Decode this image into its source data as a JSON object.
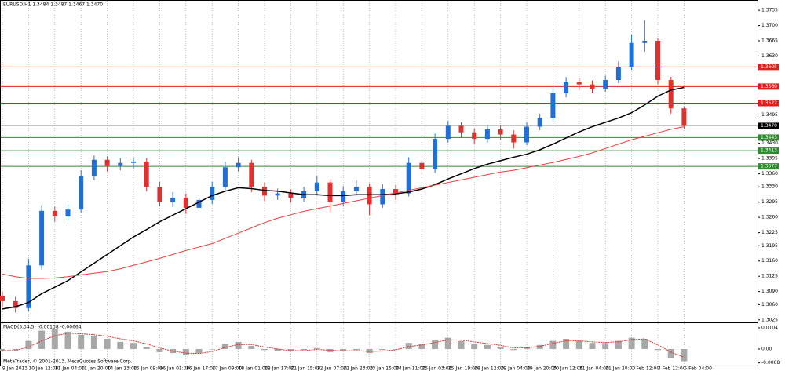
{
  "chart_data": [
    {
      "type": "candlestick",
      "title": "EURUSD,H1  1.3484 1.3487 1.3467 1.3470",
      "categories": [
        "9 Jan 2013",
        null,
        "10 Jan 12:00",
        null,
        "11 Jan 04:00",
        null,
        "11 Jan 20:00",
        null,
        "14 Jan 13:00",
        null,
        "15 Jan 09:00",
        null,
        "16 Jan 01:00",
        null,
        "16 Jan 17:00",
        null,
        "17 Jan 09:00",
        null,
        "18 Jan 01:00",
        null,
        "18 Jan 17:00",
        null,
        "21 Jan 15:00",
        null,
        "22 Jan 07:00",
        null,
        "22 Jan 23:00",
        null,
        "23 Jan 15:00",
        null,
        "24 Jan 11:00",
        null,
        "25 Jan 03:00",
        null,
        "25 Jan 19:00",
        null,
        "28 Jan 12:00",
        null,
        "29 Jan 04:00",
        null,
        "29 Jan 20:00",
        null,
        "30 Jan 12:00",
        null,
        "31 Jan 04:00",
        null,
        "31 Jan 20:00",
        null,
        "1 Feb 12:00",
        null,
        "4 Feb 12:00",
        null,
        "5 Feb 04:00"
      ],
      "open": [
        1.308,
        1.3068,
        1.3052,
        1.315,
        1.3275,
        1.3262,
        1.3278,
        1.3355,
        1.3392,
        1.3378,
        1.3385,
        1.3388,
        1.333,
        1.3295,
        1.3305,
        1.3282,
        1.33,
        1.333,
        1.3375,
        1.3385,
        1.333,
        1.331,
        1.3315,
        1.3305,
        1.332,
        1.334,
        1.3295,
        1.332,
        1.333,
        1.329,
        1.3325,
        1.3315,
        1.3385,
        1.337,
        1.344,
        1.347,
        1.3455,
        1.344,
        1.3462,
        1.345,
        1.3432,
        1.3468,
        1.3488,
        1.3545,
        1.357,
        1.3565,
        1.3555,
        1.3575,
        1.3605,
        1.366,
        1.3665,
        1.3575,
        1.351
      ],
      "high": [
        1.309,
        1.3078,
        1.3165,
        1.3288,
        1.3285,
        1.329,
        1.3368,
        1.3402,
        1.34,
        1.3396,
        1.3398,
        1.3395,
        1.3342,
        1.3318,
        1.3315,
        1.3312,
        1.3342,
        1.3388,
        1.3398,
        1.3392,
        1.334,
        1.3326,
        1.3324,
        1.333,
        1.3355,
        1.3348,
        1.3332,
        1.3345,
        1.3338,
        1.3336,
        1.3334,
        1.3398,
        1.3392,
        1.3452,
        1.3482,
        1.3478,
        1.3464,
        1.3472,
        1.347,
        1.346,
        1.3478,
        1.3498,
        1.3558,
        1.3582,
        1.358,
        1.3574,
        1.3585,
        1.3618,
        1.368,
        1.3712,
        1.3672,
        1.3582,
        1.3515
      ],
      "low": [
        1.3055,
        1.3042,
        1.3045,
        1.314,
        1.325,
        1.3252,
        1.327,
        1.3345,
        1.3365,
        1.3368,
        1.3372,
        1.332,
        1.3285,
        1.3284,
        1.3268,
        1.3272,
        1.329,
        1.3322,
        1.3365,
        1.3318,
        1.3298,
        1.33,
        1.3294,
        1.3296,
        1.331,
        1.3272,
        1.3285,
        1.331,
        1.3265,
        1.3282,
        1.33,
        1.3308,
        1.3358,
        1.3362,
        1.3432,
        1.3442,
        1.3428,
        1.3432,
        1.3438,
        1.3418,
        1.3425,
        1.346,
        1.348,
        1.3535,
        1.3552,
        1.3545,
        1.3548,
        1.3568,
        1.3598,
        1.364,
        1.3565,
        1.3498,
        1.3462
      ],
      "close": [
        1.3068,
        1.3052,
        1.315,
        1.3275,
        1.3262,
        1.3278,
        1.3355,
        1.3392,
        1.3378,
        1.3385,
        1.3388,
        1.333,
        1.3295,
        1.3305,
        1.3282,
        1.33,
        1.333,
        1.3375,
        1.3385,
        1.333,
        1.331,
        1.3315,
        1.3305,
        1.332,
        1.334,
        1.3295,
        1.332,
        1.333,
        1.329,
        1.3325,
        1.3315,
        1.3385,
        1.337,
        1.344,
        1.347,
        1.3455,
        1.344,
        1.3462,
        1.345,
        1.3432,
        1.3468,
        1.3488,
        1.3545,
        1.357,
        1.3565,
        1.3555,
        1.3575,
        1.3605,
        1.366,
        1.3665,
        1.3575,
        1.351,
        1.347
      ],
      "up_color": "#1f6fd6",
      "down_color": "#e03030",
      "moving_averages": [
        {
          "color": "#000000",
          "values": [
            1.305,
            1.3055,
            1.3065,
            1.3085,
            1.31,
            1.3115,
            1.3135,
            1.3155,
            1.3175,
            1.3195,
            1.3215,
            1.3232,
            1.325,
            1.3265,
            1.328,
            1.3295,
            1.331,
            1.332,
            1.3328,
            1.3326,
            1.3322,
            1.332,
            1.3316,
            1.3312,
            1.3312,
            1.331,
            1.331,
            1.3312,
            1.3312,
            1.3312,
            1.3314,
            1.3318,
            1.3325,
            1.3335,
            1.3348,
            1.336,
            1.3372,
            1.3382,
            1.339,
            1.3398,
            1.3405,
            1.3415,
            1.3428,
            1.3442,
            1.3456,
            1.3468,
            1.3478,
            1.3488,
            1.35,
            1.3518,
            1.3538,
            1.3552,
            1.3558
          ]
        },
        {
          "color": "#f03c3c",
          "values": [
            1.313,
            1.3124,
            1.312,
            1.312,
            1.3121,
            1.3124,
            1.3128,
            1.3132,
            1.3136,
            1.3142,
            1.315,
            1.3158,
            1.3166,
            1.3175,
            1.3184,
            1.3192,
            1.32,
            1.3212,
            1.3224,
            1.3236,
            1.3248,
            1.3258,
            1.3266,
            1.3274,
            1.328,
            1.3286,
            1.3292,
            1.3298,
            1.3304,
            1.331,
            1.3316,
            1.3322,
            1.3328,
            1.3334,
            1.334,
            1.3346,
            1.3352,
            1.3358,
            1.3364,
            1.3368,
            1.3374,
            1.338,
            1.3386,
            1.3393,
            1.34,
            1.3408,
            1.3418,
            1.3428,
            1.3438,
            1.3446,
            1.3454,
            1.3462,
            1.3468
          ]
        }
      ],
      "hlines": [
        {
          "value": 1.3605,
          "color": "#e02020"
        },
        {
          "value": 1.356,
          "label": "1.3560",
          "color": "#e02020"
        },
        {
          "value": 1.3522,
          "color": "#e02020"
        },
        {
          "value": 1.3443,
          "color": "#2e8b2e"
        },
        {
          "value": 1.3413,
          "color": "#2e8b2e"
        },
        {
          "value": 1.3377,
          "color": "#2e8b2e"
        }
      ],
      "current": {
        "value": 1.347,
        "label": "1.3470",
        "color": "#000000"
      },
      "ylim": [
        1.3021,
        1.3755
      ],
      "yticks": [
        1.3735,
        {
          "value": 1.37,
          "label": "1.3700"
        },
        1.3665,
        {
          "value": 1.363,
          "label": "1.3630"
        },
        1.3495,
        {
          "value": 1.343,
          "label": "1.3430"
        },
        1.3395,
        {
          "value": 1.336,
          "label": "1.3360"
        },
        {
          "value": 1.333,
          "label": "1.3330"
        },
        1.3295,
        {
          "value": 1.326,
          "label": "1.3260"
        },
        1.3225,
        1.3195,
        {
          "value": 1.316,
          "label": "1.3160"
        },
        1.3125,
        {
          "value": 1.309,
          "label": "1.3090"
        },
        {
          "value": 1.306,
          "label": "1.3060"
        },
        1.3025
      ]
    },
    {
      "type": "macd",
      "title": "MACD(5,34,5) -0.00138 -0.00664",
      "histogram": {
        "color": "#a8a8a8",
        "values": [
          -0.001,
          -0.0005,
          0.004,
          0.009,
          0.01,
          0.0085,
          0.007,
          0.0065,
          0.005,
          0.0035,
          0.003,
          0.001,
          -0.0015,
          -0.002,
          -0.003,
          -0.002,
          0.0,
          0.0025,
          0.0035,
          0.0015,
          -0.0005,
          -0.001,
          -0.0012,
          -0.0005,
          0.0005,
          -0.0015,
          -0.001,
          -0.0005,
          -0.002,
          -0.0005,
          0.0,
          0.003,
          0.0025,
          0.0045,
          0.0055,
          0.004,
          0.0025,
          0.002,
          0.0012,
          -0.0005,
          0.001,
          0.002,
          0.004,
          0.005,
          0.004,
          0.003,
          0.003,
          0.004,
          0.0055,
          0.005,
          -0.0005,
          -0.0045,
          -0.006
        ]
      },
      "signal": {
        "color": "#e03030",
        "values": [
          -0.0008,
          -0.0007,
          0.001,
          0.004,
          0.0065,
          0.0078,
          0.0075,
          0.007,
          0.0062,
          0.005,
          0.004,
          0.0025,
          0.0005,
          -0.001,
          -0.002,
          -0.0022,
          -0.0012,
          0.0008,
          0.0022,
          0.0022,
          0.001,
          0.0,
          -0.0008,
          -0.0008,
          -0.0002,
          -0.0006,
          -0.0009,
          -0.0008,
          -0.0012,
          -0.001,
          -0.0004,
          0.0012,
          0.002,
          0.0032,
          0.0045,
          0.0044,
          0.0035,
          0.0027,
          0.0018,
          0.0005,
          0.0006,
          0.0013,
          0.0028,
          0.004,
          0.004,
          0.0035,
          0.0032,
          0.0036,
          0.0046,
          0.005,
          0.002,
          -0.0015,
          -0.004
        ]
      },
      "ylim": [
        -0.0081,
        0.0127
      ],
      "yticks": [
        0.0104,
        {
          "value": 0,
          "label": "0.00"
        },
        -0.0068
      ]
    }
  ],
  "footer": "MetaTrader, © 2001-2013, MetaQuotes Software Corp."
}
